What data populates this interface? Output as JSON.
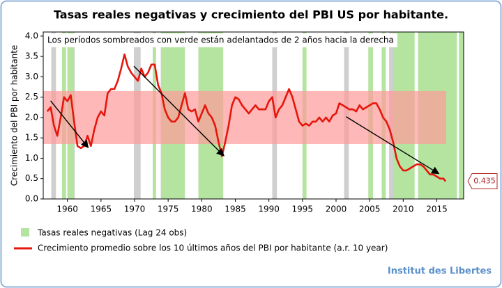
{
  "chart_data": {
    "type": "line",
    "title": "Tasas reales negativas y crecimiento del PBI US por habitante.",
    "ylabel": "Crecimiento del PBI por habitante",
    "note": "Los períodos sombreados con verde están adelantados de 2 años hacia la derecha",
    "source": "Institut des Libertes",
    "xlim": [
      1956.4,
      2019
    ],
    "ylim": [
      0,
      4.1
    ],
    "xticks": [
      1960,
      1965,
      1970,
      1975,
      1980,
      1985,
      1990,
      1995,
      2000,
      2005,
      2010,
      2015
    ],
    "yticks": [
      {
        "value": 0,
        "label": "0.0"
      },
      {
        "value": 0.5,
        "label": "0.5"
      },
      {
        "value": 1,
        "label": "1.0"
      },
      {
        "value": 1.5,
        "label": "1.5"
      },
      {
        "value": 2,
        "label": "2.0"
      },
      {
        "value": 2.5,
        "label": "2.5"
      },
      {
        "value": 3,
        "label": "3.0"
      },
      {
        "value": 3.5,
        "label": "3.5"
      },
      {
        "value": 4,
        "label": "4.0"
      }
    ],
    "x": [
      1957,
      1957.5,
      1958,
      1958.5,
      1959,
      1959.5,
      1960,
      1960.5,
      1961,
      1961.5,
      1962,
      1962.5,
      1963,
      1963.5,
      1964,
      1964.5,
      1965,
      1965.5,
      1966,
      1966.5,
      1967,
      1967.5,
      1968,
      1968.5,
      1969,
      1969.5,
      1970,
      1970.5,
      1971,
      1971.5,
      1972,
      1972.5,
      1973,
      1973.5,
      1974,
      1974.5,
      1975,
      1975.5,
      1976,
      1976.5,
      1977,
      1977.5,
      1978,
      1978.5,
      1979,
      1979.5,
      1980,
      1980.5,
      1981,
      1981.5,
      1982,
      1982.5,
      1983,
      1983.5,
      1984,
      1984.5,
      1985,
      1985.5,
      1986,
      1986.5,
      1987,
      1987.5,
      1988,
      1988.5,
      1989,
      1989.5,
      1990,
      1990.5,
      1991,
      1991.5,
      1992,
      1992.5,
      1993,
      1993.5,
      1994,
      1994.5,
      1995,
      1995.5,
      1996,
      1996.5,
      1997,
      1997.5,
      1998,
      1998.5,
      1999,
      1999.5,
      2000,
      2000.5,
      2001,
      2001.5,
      2002,
      2002.5,
      2003,
      2003.5,
      2004,
      2004.5,
      2005,
      2005.5,
      2006,
      2006.5,
      2007,
      2007.5,
      2008,
      2008.5,
      2009,
      2009.5,
      2010,
      2010.5,
      2011,
      2011.5,
      2012,
      2012.5,
      2013,
      2013.5,
      2014,
      2014.5,
      2015,
      2015.5,
      2016,
      2016.3
    ],
    "series": [
      {
        "name": "Crecimiento promedio sobre los 10 últimos años del PBI por habitante (a.r. 10 year)",
        "color": "#e5160c",
        "values": [
          2.15,
          2.25,
          1.8,
          1.55,
          2.0,
          2.5,
          2.4,
          2.55,
          1.9,
          1.3,
          1.25,
          1.3,
          1.55,
          1.3,
          1.7,
          2.0,
          2.15,
          2.05,
          2.6,
          2.7,
          2.7,
          2.9,
          3.2,
          3.55,
          3.25,
          3.1,
          3.0,
          2.9,
          3.2,
          3.0,
          3.1,
          3.3,
          3.3,
          2.8,
          2.6,
          2.2,
          2.0,
          1.9,
          1.9,
          2.0,
          2.3,
          2.6,
          2.2,
          2.15,
          2.2,
          1.9,
          2.1,
          2.3,
          2.1,
          2.0,
          1.8,
          1.4,
          1.05,
          1.4,
          1.8,
          2.3,
          2.5,
          2.45,
          2.3,
          2.2,
          2.1,
          2.2,
          2.3,
          2.2,
          2.2,
          2.2,
          2.4,
          2.5,
          2.0,
          2.2,
          2.3,
          2.5,
          2.7,
          2.5,
          2.2,
          1.9,
          1.8,
          1.85,
          1.8,
          1.9,
          1.9,
          2.0,
          1.9,
          2.0,
          1.9,
          2.05,
          2.1,
          2.35,
          2.3,
          2.25,
          2.2,
          2.2,
          2.15,
          2.3,
          2.2,
          2.25,
          2.3,
          2.35,
          2.35,
          2.2,
          2.0,
          1.9,
          1.7,
          1.4,
          1.0,
          0.8,
          0.7,
          0.7,
          0.75,
          0.8,
          0.85,
          0.85,
          0.8,
          0.7,
          0.6,
          0.6,
          0.55,
          0.5,
          0.5,
          0.435
        ]
      }
    ],
    "regions": {
      "name": "Tasas reales negativas (Lag 24 obs)",
      "color": "#b5e4a0",
      "spans": [
        [
          1959.2,
          1959.8
        ],
        [
          1960,
          1961
        ],
        [
          1972.7,
          1973.2
        ],
        [
          1974,
          1977.5
        ],
        [
          1979.5,
          1983.2
        ],
        [
          1995,
          1995.6
        ],
        [
          2004.8,
          2005.5
        ],
        [
          2006.8,
          2007.4
        ],
        [
          2008.5,
          2011.7
        ],
        [
          2012.2,
          2018
        ],
        [
          2018.3,
          2019
        ]
      ]
    },
    "recessions": {
      "color": "#cfcfcf",
      "spans": [
        [
          1957.6,
          1958.3
        ],
        [
          1960.3,
          1961.1
        ],
        [
          1969.9,
          1970.9
        ],
        [
          1973.9,
          1975.2
        ],
        [
          1980,
          1980.5
        ],
        [
          1981.5,
          1982.9
        ],
        [
          1990.5,
          1991.2
        ],
        [
          2001.2,
          2001.9
        ],
        [
          2007.9,
          2009.5
        ]
      ]
    },
    "band": {
      "color": "#ff9a9a",
      "x": [
        1956.4,
        2016.4
      ],
      "y": [
        1.35,
        2.65
      ]
    },
    "arrows": [
      [
        [
          1957.5,
          2.41
        ],
        [
          1963.1,
          1.26
        ]
      ],
      [
        [
          1969.9,
          3.26
        ],
        [
          1983.3,
          1.06
        ]
      ],
      [
        [
          2001.5,
          2.02
        ],
        [
          2015.3,
          0.62
        ]
      ]
    ]
  }
}
